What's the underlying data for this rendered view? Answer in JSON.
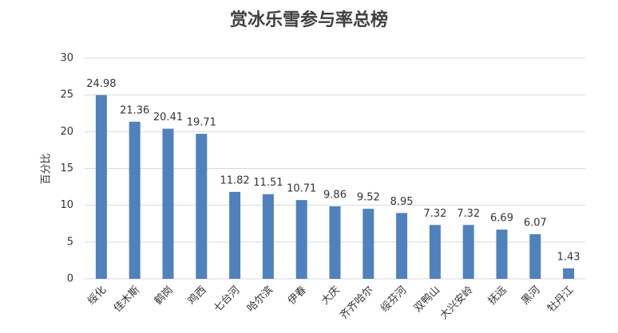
{
  "chart_data": {
    "type": "bar",
    "title": "赏冰乐雪参与率总榜",
    "y_label": "百分比",
    "categories": [
      "绥化",
      "佳木斯",
      "鹤岗",
      "鸡西",
      "七台河",
      "哈尔滨",
      "伊春",
      "大庆",
      "齐齐哈尔",
      "绥芬河",
      "双鸭山",
      "大兴安岭",
      "抚远",
      "黑河",
      "牡丹江"
    ],
    "values": [
      24.98,
      21.36,
      20.41,
      19.71,
      11.82,
      11.51,
      10.71,
      9.86,
      9.52,
      8.95,
      7.32,
      7.32,
      6.69,
      6.07,
      1.43
    ],
    "color": "#4f81bd",
    "ylim": [
      0,
      30
    ],
    "yticks": [
      0,
      5,
      10,
      15,
      20,
      25,
      30
    ],
    "grid": true
  }
}
